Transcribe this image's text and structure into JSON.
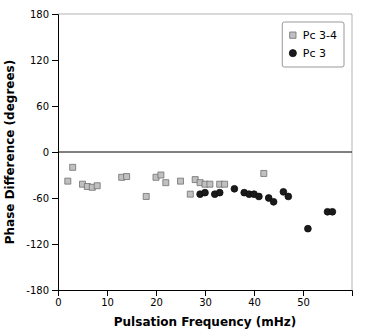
{
  "chart_data": {
    "type": "scatter",
    "xlabel": "Pulsation Frequency (mHz)",
    "ylabel": "Phase Difference (degrees)",
    "xlim": [
      0,
      60
    ],
    "ylim": [
      -180,
      180
    ],
    "xticks": [
      0,
      10,
      20,
      30,
      40,
      50
    ],
    "yticks": [
      -180,
      -120,
      -60,
      0,
      60,
      120,
      180
    ],
    "grid": false,
    "legend": "upper right",
    "series": [
      {
        "name": "Pc 3-4",
        "color": "#c0c0c0",
        "marker": "square",
        "x": [
          2,
          3,
          5,
          6,
          7,
          8,
          13,
          14,
          18,
          20,
          21,
          22,
          25,
          27,
          28,
          29,
          30,
          31,
          33,
          34,
          42
        ],
        "values": [
          -38,
          -20,
          -42,
          -45,
          -46,
          -44,
          -33,
          -32,
          -58,
          -33,
          -30,
          -40,
          -38,
          -55,
          -36,
          -40,
          -42,
          -42,
          -42,
          -42,
          -28
        ]
      },
      {
        "name": "Pc 3",
        "color": "#1a1a1a",
        "marker": "circle",
        "x": [
          29,
          30,
          32,
          33,
          36,
          38,
          39,
          40,
          41,
          43,
          44,
          46,
          47,
          51,
          55,
          56
        ],
        "values": [
          -55,
          -53,
          -55,
          -53,
          -48,
          -53,
          -55,
          -55,
          -58,
          -60,
          -65,
          -52,
          -58,
          -100,
          -78,
          -78
        ]
      }
    ]
  }
}
